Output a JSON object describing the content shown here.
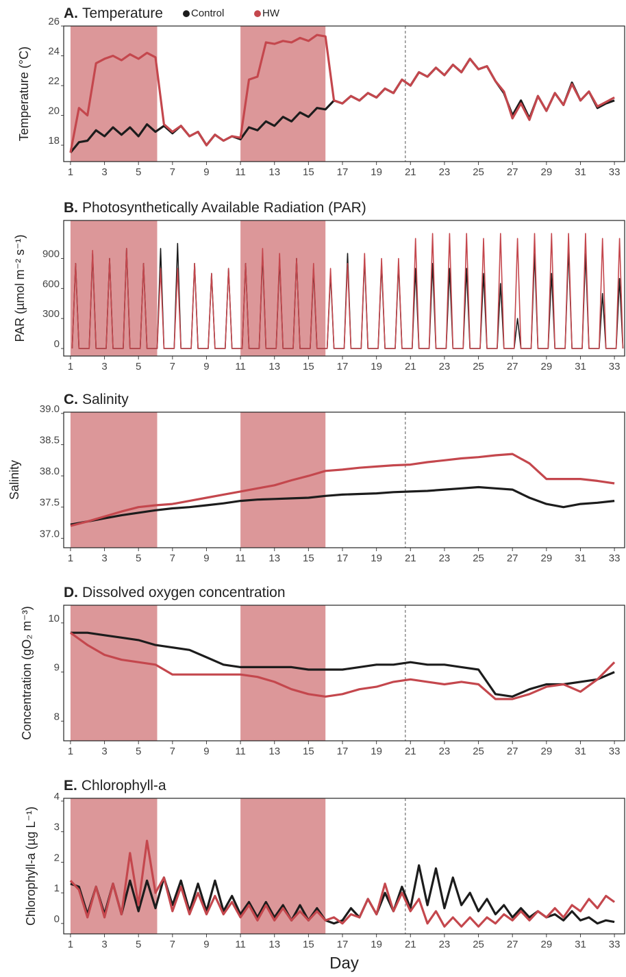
{
  "chart_data": [
    {
      "type": "line",
      "label": "A.",
      "title": "Temperature",
      "ylabel": "Temperature (°C)",
      "legend": true,
      "highlight_ranges": [
        [
          1,
          6.1
        ],
        [
          11,
          16
        ]
      ],
      "highlight_color": "#dc9799",
      "reference_x": 20.7,
      "xlim": [
        0.6,
        33.6
      ],
      "xticks": [
        1,
        3,
        5,
        7,
        9,
        11,
        13,
        15,
        17,
        19,
        21,
        23,
        25,
        27,
        29,
        31,
        33
      ],
      "ylim": [
        16.9,
        26
      ],
      "yticks": [
        18,
        20,
        22,
        24,
        26
      ],
      "x": [
        1,
        1.5,
        2,
        2.5,
        3,
        3.5,
        4,
        4.5,
        5,
        5.5,
        6,
        6.5,
        7,
        7.5,
        8,
        8.5,
        9,
        9.5,
        10,
        10.5,
        11,
        11.5,
        12,
        12.5,
        13,
        13.5,
        14,
        14.5,
        15,
        15.5,
        16,
        16.5,
        17,
        17.5,
        18,
        18.5,
        19,
        19.5,
        20,
        20.5,
        21,
        21.5,
        22,
        22.5,
        23,
        23.5,
        24,
        24.5,
        25,
        25.5,
        26,
        26.5,
        27,
        27.5,
        28,
        28.5,
        29,
        29.5,
        30,
        30.5,
        31,
        31.5,
        32,
        32.5,
        33
      ],
      "series": [
        {
          "name": "Control",
          "color": "#1c1c1c",
          "values": [
            17.5,
            18.2,
            18.3,
            19.0,
            18.6,
            19.2,
            18.7,
            19.2,
            18.6,
            19.4,
            18.9,
            19.3,
            18.8,
            19.3,
            18.6,
            18.9,
            18.0,
            18.7,
            18.3,
            18.6,
            18.4,
            19.2,
            19.0,
            19.6,
            19.3,
            19.9,
            19.6,
            20.2,
            19.9,
            20.5,
            20.4,
            21.0,
            20.8,
            21.3,
            21.0,
            21.5,
            21.2,
            21.8,
            21.5,
            22.4,
            22.0,
            22.9,
            22.6,
            23.2,
            22.7,
            23.4,
            22.9,
            23.8,
            23.1,
            23.3,
            22.3,
            21.5,
            20.0,
            21.0,
            19.8,
            21.3,
            20.3,
            21.5,
            20.7,
            22.2,
            21.0,
            21.6,
            20.5,
            20.8,
            21.0
          ]
        },
        {
          "name": "HW",
          "color": "#c4474d",
          "values": [
            17.5,
            20.5,
            20.0,
            23.5,
            23.8,
            24.0,
            23.7,
            24.1,
            23.8,
            24.2,
            23.9,
            19.4,
            18.9,
            19.3,
            18.6,
            18.9,
            18.0,
            18.7,
            18.3,
            18.6,
            18.5,
            22.4,
            22.6,
            24.9,
            24.8,
            25.0,
            24.9,
            25.2,
            25.0,
            25.4,
            25.3,
            21.0,
            20.8,
            21.3,
            21.0,
            21.5,
            21.2,
            21.8,
            21.5,
            22.4,
            22.0,
            22.9,
            22.6,
            23.2,
            22.7,
            23.4,
            22.9,
            23.8,
            23.1,
            23.3,
            22.3,
            21.6,
            19.8,
            20.8,
            19.7,
            21.3,
            20.3,
            21.5,
            20.7,
            22.1,
            21.0,
            21.6,
            20.6,
            20.9,
            21.2
          ]
        }
      ]
    },
    {
      "type": "line",
      "label": "B.",
      "title": "Photosynthetically Available Radiation (PAR)",
      "ylabel": "PAR (µmol m⁻² s⁻¹)",
      "highlight_ranges": [
        [
          1,
          6.1
        ],
        [
          11,
          16
        ]
      ],
      "highlight_color": "#dc9799",
      "xlim": [
        0.6,
        33.6
      ],
      "xticks": [
        1,
        3,
        5,
        7,
        9,
        11,
        13,
        15,
        17,
        19,
        21,
        23,
        25,
        27,
        29,
        31,
        33
      ],
      "ylim": [
        -75,
        1280
      ],
      "yticks": [
        0,
        300,
        600,
        900
      ],
      "x": [
        1.1,
        1.3,
        1.5,
        2.1,
        2.3,
        2.5,
        3.1,
        3.3,
        3.5,
        4.1,
        4.3,
        4.5,
        5.1,
        5.3,
        5.5,
        6.1,
        6.3,
        6.5,
        7.1,
        7.3,
        7.5,
        8.1,
        8.3,
        8.5,
        9.1,
        9.3,
        9.5,
        10.1,
        10.3,
        10.5,
        11.1,
        11.3,
        11.5,
        12.1,
        12.3,
        12.5,
        13.1,
        13.3,
        13.5,
        14.1,
        14.3,
        14.5,
        15.1,
        15.3,
        15.5,
        16.1,
        16.3,
        16.5,
        17.1,
        17.3,
        17.5,
        18.1,
        18.3,
        18.5,
        19.1,
        19.3,
        19.5,
        20.1,
        20.3,
        20.5,
        21.1,
        21.3,
        21.5,
        22.1,
        22.3,
        22.5,
        23.1,
        23.3,
        23.5,
        24.1,
        24.3,
        24.5,
        25.1,
        25.3,
        25.5,
        26.1,
        26.3,
        26.5,
        27.1,
        27.3,
        27.5,
        28.1,
        28.3,
        28.5,
        29.1,
        29.3,
        29.5,
        30.1,
        30.3,
        30.5,
        31.1,
        31.3,
        31.5,
        32.1,
        32.3,
        32.5,
        33.1,
        33.3,
        33.5
      ],
      "series": [
        {
          "color": "#1c1c1c",
          "values": [
            0,
            850,
            0,
            0,
            950,
            0,
            0,
            900,
            0,
            0,
            1000,
            0,
            0,
            850,
            0,
            0,
            1000,
            0,
            0,
            1050,
            0,
            0,
            850,
            0,
            0,
            750,
            0,
            0,
            800,
            0,
            0,
            850,
            0,
            0,
            950,
            0,
            0,
            900,
            0,
            0,
            900,
            0,
            0,
            800,
            0,
            0,
            750,
            0,
            0,
            950,
            0,
            0,
            900,
            0,
            0,
            850,
            0,
            0,
            850,
            0,
            0,
            800,
            0,
            0,
            850,
            0,
            0,
            800,
            0,
            0,
            800,
            0,
            0,
            750,
            0,
            0,
            650,
            0,
            0,
            300,
            0,
            0,
            950,
            0,
            0,
            750,
            0,
            0,
            1000,
            0,
            0,
            950,
            0,
            0,
            550,
            0,
            0,
            700,
            0
          ]
        },
        {
          "color": "#c4474d",
          "values": [
            0,
            850,
            0,
            0,
            980,
            0,
            0,
            900,
            0,
            0,
            1000,
            0,
            0,
            850,
            0,
            0,
            800,
            0,
            0,
            800,
            0,
            0,
            850,
            0,
            0,
            750,
            0,
            0,
            800,
            0,
            0,
            850,
            0,
            0,
            1000,
            0,
            0,
            950,
            0,
            0,
            900,
            0,
            0,
            850,
            0,
            0,
            800,
            0,
            0,
            850,
            0,
            0,
            950,
            0,
            0,
            900,
            0,
            0,
            900,
            0,
            0,
            1100,
            0,
            0,
            1150,
            0,
            0,
            1150,
            0,
            0,
            1150,
            0,
            0,
            1100,
            0,
            0,
            1150,
            0,
            0,
            1100,
            0,
            0,
            1150,
            0,
            0,
            1150,
            0,
            0,
            1150,
            0,
            0,
            1150,
            0,
            0,
            1100,
            0,
            0,
            1100,
            0
          ]
        }
      ]
    },
    {
      "type": "line",
      "label": "C.",
      "title": "Salinity",
      "ylabel": "Salinity",
      "highlight_ranges": [
        [
          1,
          6.1
        ],
        [
          11,
          16
        ]
      ],
      "highlight_color": "#dc9799",
      "reference_x": 20.7,
      "xlim": [
        0.6,
        33.6
      ],
      "xticks": [
        1,
        3,
        5,
        7,
        9,
        11,
        13,
        15,
        17,
        19,
        21,
        23,
        25,
        27,
        29,
        31,
        33
      ],
      "ylim": [
        36.85,
        39.02
      ],
      "yticks": [
        {
          "value": 37,
          "label": "37.0"
        },
        37.5,
        {
          "value": 38,
          "label": "38.0"
        },
        38.5,
        {
          "value": 39,
          "label": "39.0"
        }
      ],
      "x": [
        1,
        2,
        3,
        4,
        5,
        6,
        7,
        8,
        9,
        10,
        11,
        12,
        13,
        14,
        15,
        16,
        17,
        18,
        19,
        20,
        21,
        22,
        23,
        24,
        25,
        26,
        27,
        28,
        29,
        30,
        31,
        32,
        33
      ],
      "series": [
        {
          "color": "#1c1c1c",
          "values": [
            37.22,
            37.27,
            37.32,
            37.37,
            37.41,
            37.45,
            37.48,
            37.5,
            37.53,
            37.56,
            37.6,
            37.62,
            37.63,
            37.64,
            37.65,
            37.68,
            37.7,
            37.71,
            37.72,
            37.74,
            37.75,
            37.76,
            37.78,
            37.8,
            37.82,
            37.8,
            37.78,
            37.65,
            37.55,
            37.5,
            37.55,
            37.57,
            37.6
          ]
        },
        {
          "color": "#c4474d",
          "values": [
            37.2,
            37.27,
            37.35,
            37.43,
            37.5,
            37.53,
            37.55,
            37.6,
            37.65,
            37.7,
            37.75,
            37.8,
            37.85,
            37.93,
            38.0,
            38.08,
            38.1,
            38.13,
            38.15,
            38.17,
            38.18,
            38.22,
            38.25,
            38.28,
            38.3,
            38.33,
            38.35,
            38.2,
            37.95,
            37.95,
            37.95,
            37.92,
            37.88
          ]
        }
      ]
    },
    {
      "type": "line",
      "label": "D.",
      "title": "Dissolved oxygen concentration",
      "ylabel": "Concentration (gO₂ m⁻³)",
      "highlight_ranges": [
        [
          1,
          6.1
        ],
        [
          11,
          16
        ]
      ],
      "highlight_color": "#dc9799",
      "reference_x": 20.7,
      "xlim": [
        0.6,
        33.6
      ],
      "xticks": [
        1,
        3,
        5,
        7,
        9,
        11,
        13,
        15,
        17,
        19,
        21,
        23,
        25,
        27,
        29,
        31,
        33
      ],
      "ylim": [
        7.6,
        10.36
      ],
      "yticks": [
        8,
        9,
        10
      ],
      "x": [
        1,
        2,
        3,
        4,
        5,
        6,
        7,
        8,
        9,
        10,
        11,
        12,
        13,
        14,
        15,
        16,
        17,
        18,
        19,
        20,
        21,
        22,
        23,
        24,
        25,
        26,
        27,
        28,
        29,
        30,
        31,
        32,
        33
      ],
      "series": [
        {
          "color": "#1c1c1c",
          "values": [
            9.8,
            9.8,
            9.75,
            9.7,
            9.65,
            9.55,
            9.5,
            9.45,
            9.3,
            9.15,
            9.1,
            9.1,
            9.1,
            9.1,
            9.05,
            9.05,
            9.05,
            9.1,
            9.15,
            9.15,
            9.2,
            9.15,
            9.15,
            9.1,
            9.05,
            8.55,
            8.5,
            8.65,
            8.75,
            8.75,
            8.8,
            8.85,
            9.0
          ]
        },
        {
          "color": "#c4474d",
          "values": [
            9.8,
            9.55,
            9.35,
            9.25,
            9.2,
            9.15,
            8.95,
            8.95,
            8.95,
            8.95,
            8.95,
            8.9,
            8.8,
            8.65,
            8.55,
            8.5,
            8.55,
            8.65,
            8.7,
            8.8,
            8.85,
            8.8,
            8.75,
            8.8,
            8.75,
            8.45,
            8.45,
            8.55,
            8.7,
            8.75,
            8.6,
            8.85,
            9.2
          ]
        }
      ]
    },
    {
      "type": "line",
      "label": "E.",
      "title": "Chlorophyll-a",
      "ylabel": "Chlorophyll-a (µg L⁻¹)",
      "xlabel": "Day",
      "highlight_ranges": [
        [
          1,
          6.1
        ],
        [
          11,
          16
        ]
      ],
      "highlight_color": "#dc9799",
      "reference_x": 20.7,
      "xlim": [
        0.6,
        33.6
      ],
      "xticks": [
        1,
        3,
        5,
        7,
        9,
        11,
        13,
        15,
        17,
        19,
        21,
        23,
        25,
        27,
        29,
        31,
        33
      ],
      "ylim": [
        -0.34,
        4.09
      ],
      "yticks": [
        0,
        1,
        2,
        3,
        4
      ],
      "x": [
        1,
        1.5,
        2,
        2.5,
        3,
        3.5,
        4,
        4.5,
        5,
        5.5,
        6,
        6.5,
        7,
        7.5,
        8,
        8.5,
        9,
        9.5,
        10,
        10.5,
        11,
        11.5,
        12,
        12.5,
        13,
        13.5,
        14,
        14.5,
        15,
        15.5,
        16,
        16.5,
        17,
        17.5,
        18,
        18.5,
        19,
        19.5,
        20,
        20.5,
        21,
        21.5,
        22,
        22.5,
        23,
        23.5,
        24,
        24.5,
        25,
        25.5,
        26,
        26.5,
        27,
        27.5,
        28,
        28.5,
        29,
        29.5,
        30,
        30.5,
        31,
        31.5,
        32,
        32.5,
        33
      ],
      "series": [
        {
          "color": "#1c1c1c",
          "values": [
            1.3,
            1.2,
            0.3,
            1.2,
            0.3,
            1.3,
            0.3,
            1.4,
            0.4,
            1.4,
            0.5,
            1.5,
            0.6,
            1.4,
            0.4,
            1.3,
            0.4,
            1.4,
            0.4,
            0.9,
            0.3,
            0.7,
            0.2,
            0.7,
            0.2,
            0.6,
            0.1,
            0.6,
            0.1,
            0.5,
            0.1,
            0.0,
            0.1,
            0.5,
            0.2,
            0.8,
            0.3,
            1.0,
            0.4,
            1.2,
            0.5,
            1.9,
            0.6,
            1.8,
            0.5,
            1.5,
            0.6,
            1.0,
            0.4,
            0.8,
            0.3,
            0.6,
            0.2,
            0.5,
            0.2,
            0.4,
            0.2,
            0.3,
            0.1,
            0.4,
            0.1,
            0.2,
            0.0,
            0.1,
            0.05
          ]
        },
        {
          "color": "#c4474d",
          "values": [
            1.4,
            1.1,
            0.2,
            1.2,
            0.2,
            1.3,
            0.3,
            2.3,
            0.6,
            2.7,
            1.0,
            1.5,
            0.4,
            1.2,
            0.3,
            1.0,
            0.3,
            0.9,
            0.3,
            0.7,
            0.2,
            0.6,
            0.1,
            0.6,
            0.1,
            0.5,
            0.1,
            0.4,
            0.1,
            0.4,
            0.1,
            0.2,
            0.0,
            0.3,
            0.2,
            0.8,
            0.3,
            1.3,
            0.4,
            1.0,
            0.4,
            0.8,
            0.0,
            0.4,
            -0.1,
            0.2,
            -0.1,
            0.2,
            -0.1,
            0.2,
            0.0,
            0.3,
            0.1,
            0.4,
            0.1,
            0.4,
            0.2,
            0.5,
            0.2,
            0.6,
            0.4,
            0.8,
            0.5,
            0.9,
            0.7
          ]
        }
      ]
    }
  ]
}
